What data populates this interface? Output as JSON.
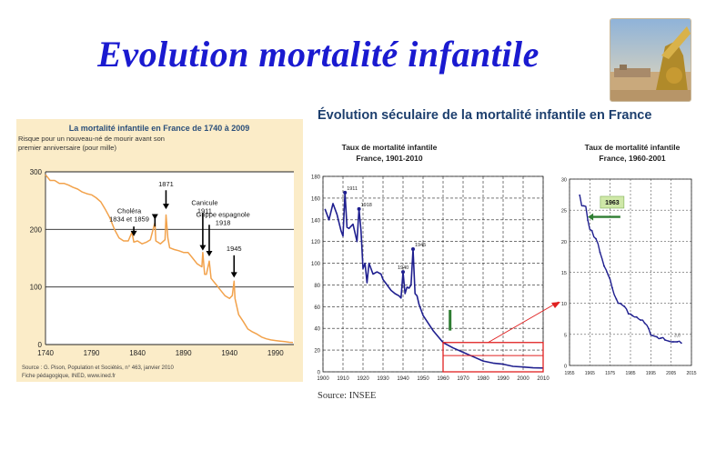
{
  "slide": {
    "title": "Evolution mortalité infantile",
    "source": "Source: INSEE"
  },
  "colors": {
    "title": "#1a1ad0",
    "left_line": "#f2a24b",
    "left_bg": "#fbecc8",
    "right_line": "#1f1f8f",
    "highlight_box": "#e02020",
    "marker_green": "#2e7d32",
    "green_label_bg": "#cfe8a8"
  },
  "chart_data": [
    {
      "type": "line",
      "title": "La mortalité infantile en France de 1740 à 2009",
      "ylabel": "Risque pour un nouveau-né de mourir avant son premier anniversaire (pour mille)",
      "xlabel": "",
      "x_ticks": [
        "1740",
        "1790",
        "1840",
        "1890",
        "1940",
        "1990"
      ],
      "y_ticks": [
        "0",
        "100",
        "200",
        "300"
      ],
      "xlim": [
        1740,
        2010
      ],
      "ylim": [
        0,
        300
      ],
      "grid": "horizontal",
      "series": [
        {
          "x": [
            1740,
            1745,
            1750,
            1755,
            1760,
            1765,
            1770,
            1775,
            1780,
            1785,
            1790,
            1795,
            1800,
            1805,
            1810,
            1815,
            1820,
            1825,
            1830,
            1834,
            1836,
            1840,
            1845,
            1850,
            1854,
            1859,
            1860,
            1865,
            1870,
            1871,
            1873,
            1875,
            1880,
            1885,
            1890,
            1895,
            1900,
            1905,
            1910,
            1911,
            1913,
            1915,
            1918,
            1920,
            1925,
            1930,
            1935,
            1940,
            1943,
            1945,
            1946,
            1950,
            1955,
            1960,
            1965,
            1970,
            1975,
            1980,
            1985,
            1990,
            1995,
            2000,
            2005,
            2009
          ],
          "y": [
            295,
            285,
            285,
            280,
            280,
            277,
            273,
            270,
            265,
            262,
            260,
            255,
            248,
            235,
            220,
            200,
            185,
            180,
            180,
            195,
            178,
            180,
            175,
            178,
            182,
            212,
            180,
            175,
            182,
            225,
            185,
            168,
            165,
            163,
            160,
            160,
            150,
            140,
            135,
            160,
            122,
            122,
            145,
            115,
            105,
            95,
            85,
            80,
            85,
            110,
            80,
            52,
            40,
            27,
            22,
            18,
            13,
            10,
            8,
            7,
            6,
            5,
            4,
            3.7
          ]
        }
      ],
      "annotations": [
        {
          "text": "Choléra 1834 et 1859"
        },
        {
          "text": "1871"
        },
        {
          "text": "Canicule 1911"
        },
        {
          "text": "Grippe espagnole 1918"
        },
        {
          "text": "1945"
        }
      ],
      "footnote_1": "Source : G. Pison, Population et Sociétés, n° 463, janvier 2010",
      "footnote_2": "Fiche pédagogique, INED, www.ined.fr"
    },
    {
      "type": "line",
      "suptitle": "Évolution séculaire de la mortalité infantile en France",
      "title_1": "Taux de mortalité infantile",
      "title_2": "France, 1901-2010",
      "x_ticks": [
        "1900",
        "1910",
        "1920",
        "1930",
        "1940",
        "1950",
        "1960",
        "1970",
        "1980",
        "1990",
        "2000",
        "2010"
      ],
      "y_ticks": [
        "0",
        "20",
        "40",
        "60",
        "80",
        "100",
        "120",
        "140",
        "160",
        "180"
      ],
      "xlim": [
        1900,
        2010
      ],
      "ylim": [
        0,
        180
      ],
      "grid": "dashed",
      "series": [
        {
          "x": [
            1901,
            1903,
            1905,
            1907,
            1909,
            1910,
            1911,
            1912,
            1913,
            1915,
            1917,
            1918,
            1919,
            1920,
            1921,
            1922,
            1923,
            1925,
            1927,
            1929,
            1930,
            1932,
            1934,
            1936,
            1938,
            1939,
            1940,
            1941,
            1942,
            1943,
            1944,
            1945,
            1946,
            1947,
            1948,
            1950,
            1955,
            1960,
            1965,
            1970,
            1975,
            1980,
            1985,
            1990,
            1995,
            2000,
            2005,
            2010
          ],
          "y": [
            150,
            140,
            155,
            145,
            130,
            125,
            165,
            133,
            132,
            136,
            120,
            150,
            130,
            95,
            100,
            82,
            100,
            90,
            92,
            90,
            85,
            80,
            75,
            72,
            70,
            68,
            92,
            72,
            78,
            77,
            80,
            113,
            72,
            70,
            62,
            52,
            38,
            27,
            22,
            18,
            14,
            10,
            8,
            7,
            5,
            4.4,
            3.7,
            3.5
          ]
        }
      ],
      "point_labels": [
        "1911",
        "1918",
        "1940",
        "1945"
      ]
    },
    {
      "type": "line",
      "title_1": "Taux de mortalité infantile",
      "title_2": "France, 1960-2001",
      "x_ticks": [
        "1955",
        "1965",
        "1975",
        "1985",
        "1995",
        "2005",
        "2015"
      ],
      "y_ticks": [
        "0",
        "5",
        "10",
        "15",
        "20",
        "25",
        "30"
      ],
      "xlim": [
        1955,
        2015
      ],
      "ylim": [
        0,
        30
      ],
      "grid": "dashed",
      "series": [
        {
          "x": [
            1960,
            1961,
            1962,
            1963,
            1964,
            1965,
            1966,
            1967,
            1968,
            1969,
            1970,
            1971,
            1972,
            1973,
            1974,
            1975,
            1976,
            1977,
            1978,
            1979,
            1980,
            1981,
            1982,
            1983,
            1984,
            1985,
            1986,
            1987,
            1988,
            1989,
            1990,
            1991,
            1992,
            1993,
            1994,
            1995,
            1996,
            1997,
            1998,
            1999,
            2000,
            2001,
            2002,
            2003,
            2004,
            2005,
            2006,
            2007,
            2008,
            2009,
            2010
          ],
          "y": [
            27.4,
            25.7,
            25.7,
            25.6,
            23.4,
            21.9,
            21.7,
            20.7,
            20.4,
            19.6,
            18.2,
            17.2,
            16.0,
            15.4,
            14.6,
            13.8,
            12.5,
            11.4,
            10.7,
            10.0,
            10.0,
            9.7,
            9.5,
            9.1,
            8.3,
            8.3,
            8.0,
            7.8,
            7.8,
            7.5,
            7.3,
            7.3,
            6.8,
            6.5,
            5.9,
            4.9,
            4.8,
            4.7,
            4.6,
            4.3,
            4.4,
            4.5,
            4.1,
            4.0,
            3.9,
            3.8,
            3.8,
            3.8,
            3.8,
            3.9,
            3.6
          ]
        }
      ],
      "annotations": [
        {
          "text": "1963"
        },
        {
          "text": "3,6"
        }
      ]
    }
  ]
}
